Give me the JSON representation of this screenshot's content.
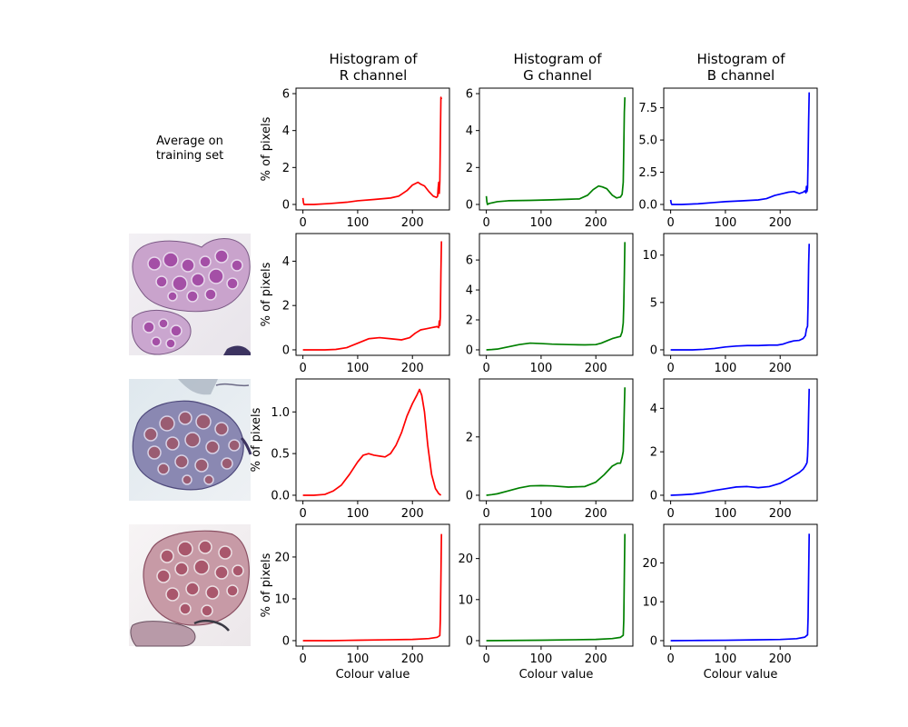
{
  "figure": {
    "column_titles": [
      [
        "Histogram of",
        "R channel"
      ],
      [
        "Histogram of",
        "G channel"
      ],
      [
        "Histogram of",
        "B channel"
      ]
    ],
    "row_header": [
      "Average on",
      "training set"
    ],
    "ylabel": "% of pixels",
    "xlabel": "Colour value",
    "thumbnail_icons": [
      "tissue-sample-1",
      "tissue-sample-2",
      "tissue-sample-3"
    ],
    "colors": {
      "R": "#ff0000",
      "G": "#008000",
      "B": "#0000ff"
    }
  },
  "chart_data": [
    {
      "type": "line",
      "row": 0,
      "channel": "R",
      "color": "#ff0000",
      "xlim": [
        0,
        255
      ],
      "ylim": [
        0,
        6
      ],
      "xticks": [
        0,
        100,
        200
      ],
      "yticks": [
        "0",
        "2",
        "4",
        "6"
      ],
      "series": [
        {
          "x": [
            0,
            1,
            2,
            5,
            20,
            50,
            80,
            100,
            130,
            160,
            175,
            190,
            200,
            210,
            215,
            222,
            230,
            238,
            244,
            246,
            247,
            248,
            249,
            250,
            251,
            252,
            253
          ],
          "values": [
            0.35,
            0.1,
            0.0,
            0.0,
            0.0,
            0.05,
            0.12,
            0.2,
            0.27,
            0.35,
            0.45,
            0.75,
            1.05,
            1.2,
            1.1,
            1.0,
            0.7,
            0.45,
            0.38,
            0.45,
            0.9,
            1.2,
            0.6,
            1.2,
            3.5,
            5.8,
            5.7
          ]
        }
      ]
    },
    {
      "type": "line",
      "row": 0,
      "channel": "G",
      "color": "#008000",
      "xlim": [
        0,
        255
      ],
      "ylim": [
        0,
        6
      ],
      "xticks": [
        0,
        100,
        200
      ],
      "yticks": [
        "0",
        "2",
        "4",
        "6"
      ],
      "series": [
        {
          "x": [
            0,
            1,
            2,
            5,
            20,
            40,
            80,
            120,
            150,
            170,
            185,
            195,
            205,
            212,
            220,
            230,
            238,
            245,
            248,
            250,
            251,
            252,
            253
          ],
          "values": [
            0.45,
            0.15,
            0.0,
            0.05,
            0.15,
            0.2,
            0.22,
            0.25,
            0.28,
            0.3,
            0.5,
            0.8,
            1.0,
            0.95,
            0.85,
            0.5,
            0.35,
            0.4,
            0.55,
            1.2,
            3.0,
            5.0,
            5.8
          ]
        }
      ]
    },
    {
      "type": "line",
      "row": 0,
      "channel": "B",
      "color": "#0000ff",
      "xlim": [
        0,
        255
      ],
      "ylim": [
        0,
        8.6
      ],
      "xticks": [
        0,
        100,
        200
      ],
      "yticks": [
        "0.0",
        "2.5",
        "5.0",
        "7.5"
      ],
      "series": [
        {
          "x": [
            0,
            1,
            2,
            5,
            20,
            50,
            80,
            100,
            130,
            160,
            175,
            190,
            205,
            215,
            225,
            235,
            242,
            245,
            247,
            248,
            249,
            250,
            251,
            252,
            253
          ],
          "values": [
            0.35,
            0.1,
            0.0,
            0.0,
            0.0,
            0.05,
            0.15,
            0.22,
            0.28,
            0.35,
            0.45,
            0.7,
            0.85,
            0.95,
            1.0,
            0.85,
            0.95,
            1.05,
            0.9,
            1.4,
            1.0,
            1.3,
            3.5,
            6.5,
            8.7
          ]
        }
      ]
    },
    {
      "type": "line",
      "row": 1,
      "channel": "R",
      "color": "#ff0000",
      "xlim": [
        0,
        255
      ],
      "ylim": [
        0,
        5
      ],
      "xticks": [
        0,
        100,
        200
      ],
      "yticks": [
        "0",
        "2",
        "4"
      ],
      "series": [
        {
          "x": [
            0,
            20,
            40,
            60,
            80,
            100,
            120,
            140,
            160,
            180,
            195,
            205,
            215,
            225,
            235,
            245,
            248,
            249,
            250,
            251,
            252,
            253
          ],
          "values": [
            0.0,
            0.0,
            0.0,
            0.02,
            0.1,
            0.3,
            0.5,
            0.55,
            0.5,
            0.45,
            0.55,
            0.75,
            0.9,
            0.95,
            1.0,
            1.05,
            1.0,
            1.3,
            1.1,
            1.5,
            3.5,
            4.9
          ]
        }
      ]
    },
    {
      "type": "line",
      "row": 1,
      "channel": "G",
      "color": "#008000",
      "xlim": [
        0,
        255
      ],
      "ylim": [
        0,
        7.4
      ],
      "xticks": [
        0,
        100,
        200
      ],
      "yticks": [
        "0",
        "2",
        "4",
        "6"
      ],
      "series": [
        {
          "x": [
            0,
            10,
            20,
            40,
            60,
            80,
            100,
            120,
            150,
            180,
            200,
            210,
            220,
            230,
            240,
            245,
            248,
            250,
            251,
            252,
            253
          ],
          "values": [
            0.0,
            0.02,
            0.05,
            0.2,
            0.35,
            0.45,
            0.42,
            0.38,
            0.35,
            0.33,
            0.35,
            0.45,
            0.6,
            0.75,
            0.85,
            0.9,
            1.2,
            1.8,
            3.0,
            5.0,
            7.2
          ]
        }
      ]
    },
    {
      "type": "line",
      "row": 1,
      "channel": "B",
      "color": "#0000ff",
      "xlim": [
        0,
        255
      ],
      "ylim": [
        0,
        11.7
      ],
      "xticks": [
        0,
        100,
        200
      ],
      "yticks": [
        "0",
        "5",
        "10"
      ],
      "series": [
        {
          "x": [
            0,
            20,
            40,
            60,
            80,
            100,
            120,
            140,
            160,
            180,
            195,
            205,
            215,
            225,
            235,
            242,
            246,
            248,
            250,
            251,
            252,
            253
          ],
          "values": [
            0.0,
            0.0,
            0.0,
            0.05,
            0.15,
            0.3,
            0.4,
            0.45,
            0.45,
            0.5,
            0.5,
            0.6,
            0.8,
            0.95,
            1.0,
            1.2,
            1.5,
            2.2,
            2.5,
            5.0,
            9.0,
            11.2
          ]
        }
      ]
    },
    {
      "type": "line",
      "row": 2,
      "channel": "R",
      "color": "#ff0000",
      "xlim": [
        0,
        255
      ],
      "ylim": [
        0,
        1.33
      ],
      "xticks": [
        0,
        100,
        200
      ],
      "yticks": [
        "0.0",
        "0.5",
        "1.0"
      ],
      "series": [
        {
          "x": [
            0,
            20,
            40,
            55,
            70,
            85,
            100,
            110,
            120,
            130,
            140,
            150,
            160,
            170,
            180,
            190,
            200,
            208,
            213,
            217,
            222,
            228,
            235,
            242,
            248,
            252
          ],
          "values": [
            0.0,
            0.0,
            0.01,
            0.05,
            0.12,
            0.25,
            0.4,
            0.48,
            0.5,
            0.48,
            0.47,
            0.46,
            0.5,
            0.6,
            0.75,
            0.95,
            1.1,
            1.2,
            1.27,
            1.2,
            1.0,
            0.6,
            0.25,
            0.08,
            0.02,
            0.0
          ]
        }
      ]
    },
    {
      "type": "line",
      "row": 2,
      "channel": "G",
      "color": "#008000",
      "xlim": [
        0,
        255
      ],
      "ylim": [
        0,
        3.8
      ],
      "xticks": [
        0,
        100,
        200
      ],
      "yticks": [
        "0",
        "2"
      ],
      "series": [
        {
          "x": [
            0,
            10,
            20,
            40,
            60,
            80,
            100,
            120,
            150,
            180,
            200,
            215,
            230,
            240,
            245,
            248,
            250,
            251,
            252,
            253
          ],
          "values": [
            0.0,
            0.02,
            0.05,
            0.15,
            0.25,
            0.32,
            0.33,
            0.32,
            0.28,
            0.3,
            0.45,
            0.7,
            1.0,
            1.1,
            1.1,
            1.3,
            1.5,
            2.2,
            3.0,
            3.7
          ]
        }
      ]
    },
    {
      "type": "line",
      "row": 2,
      "channel": "B",
      "color": "#0000ff",
      "xlim": [
        0,
        255
      ],
      "ylim": [
        0,
        5.1
      ],
      "xticks": [
        0,
        100,
        200
      ],
      "yticks": [
        "0",
        "2",
        "4"
      ],
      "series": [
        {
          "x": [
            0,
            20,
            40,
            60,
            80,
            100,
            120,
            140,
            160,
            180,
            200,
            215,
            225,
            235,
            242,
            246,
            249,
            250,
            251,
            252,
            253
          ],
          "values": [
            0.0,
            0.02,
            0.05,
            0.12,
            0.22,
            0.3,
            0.38,
            0.4,
            0.35,
            0.4,
            0.55,
            0.75,
            0.9,
            1.05,
            1.2,
            1.35,
            1.5,
            1.8,
            2.5,
            3.8,
            4.9
          ]
        }
      ]
    },
    {
      "type": "line",
      "row": 3,
      "channel": "R",
      "color": "#ff0000",
      "xlim": [
        0,
        255
      ],
      "ylim": [
        0,
        26.5
      ],
      "xticks": [
        0,
        100,
        200
      ],
      "yticks": [
        "0",
        "10",
        "20"
      ],
      "series": [
        {
          "x": [
            0,
            50,
            100,
            150,
            200,
            230,
            245,
            250,
            251,
            252,
            253
          ],
          "values": [
            0.0,
            0.0,
            0.1,
            0.2,
            0.3,
            0.5,
            0.8,
            1.2,
            5.0,
            15.0,
            25.5
          ]
        }
      ]
    },
    {
      "type": "line",
      "row": 3,
      "channel": "G",
      "color": "#008000",
      "xlim": [
        0,
        255
      ],
      "ylim": [
        0,
        27
      ],
      "xticks": [
        0,
        100,
        200
      ],
      "yticks": [
        "0",
        "10",
        "20"
      ],
      "series": [
        {
          "x": [
            0,
            50,
            100,
            150,
            200,
            230,
            245,
            250,
            251,
            252,
            253
          ],
          "values": [
            0.0,
            0.05,
            0.1,
            0.2,
            0.3,
            0.5,
            0.8,
            1.3,
            5.0,
            16.0,
            26.0
          ]
        }
      ]
    },
    {
      "type": "line",
      "row": 3,
      "channel": "B",
      "color": "#0000ff",
      "xlim": [
        0,
        255
      ],
      "ylim": [
        0,
        28.5
      ],
      "xticks": [
        0,
        100,
        200
      ],
      "yticks": [
        "0",
        "10",
        "20"
      ],
      "series": [
        {
          "x": [
            0,
            50,
            100,
            150,
            200,
            230,
            245,
            250,
            251,
            252,
            253
          ],
          "values": [
            0.0,
            0.05,
            0.1,
            0.2,
            0.3,
            0.5,
            0.9,
            1.5,
            6.0,
            17.0,
            27.5
          ]
        }
      ]
    }
  ]
}
